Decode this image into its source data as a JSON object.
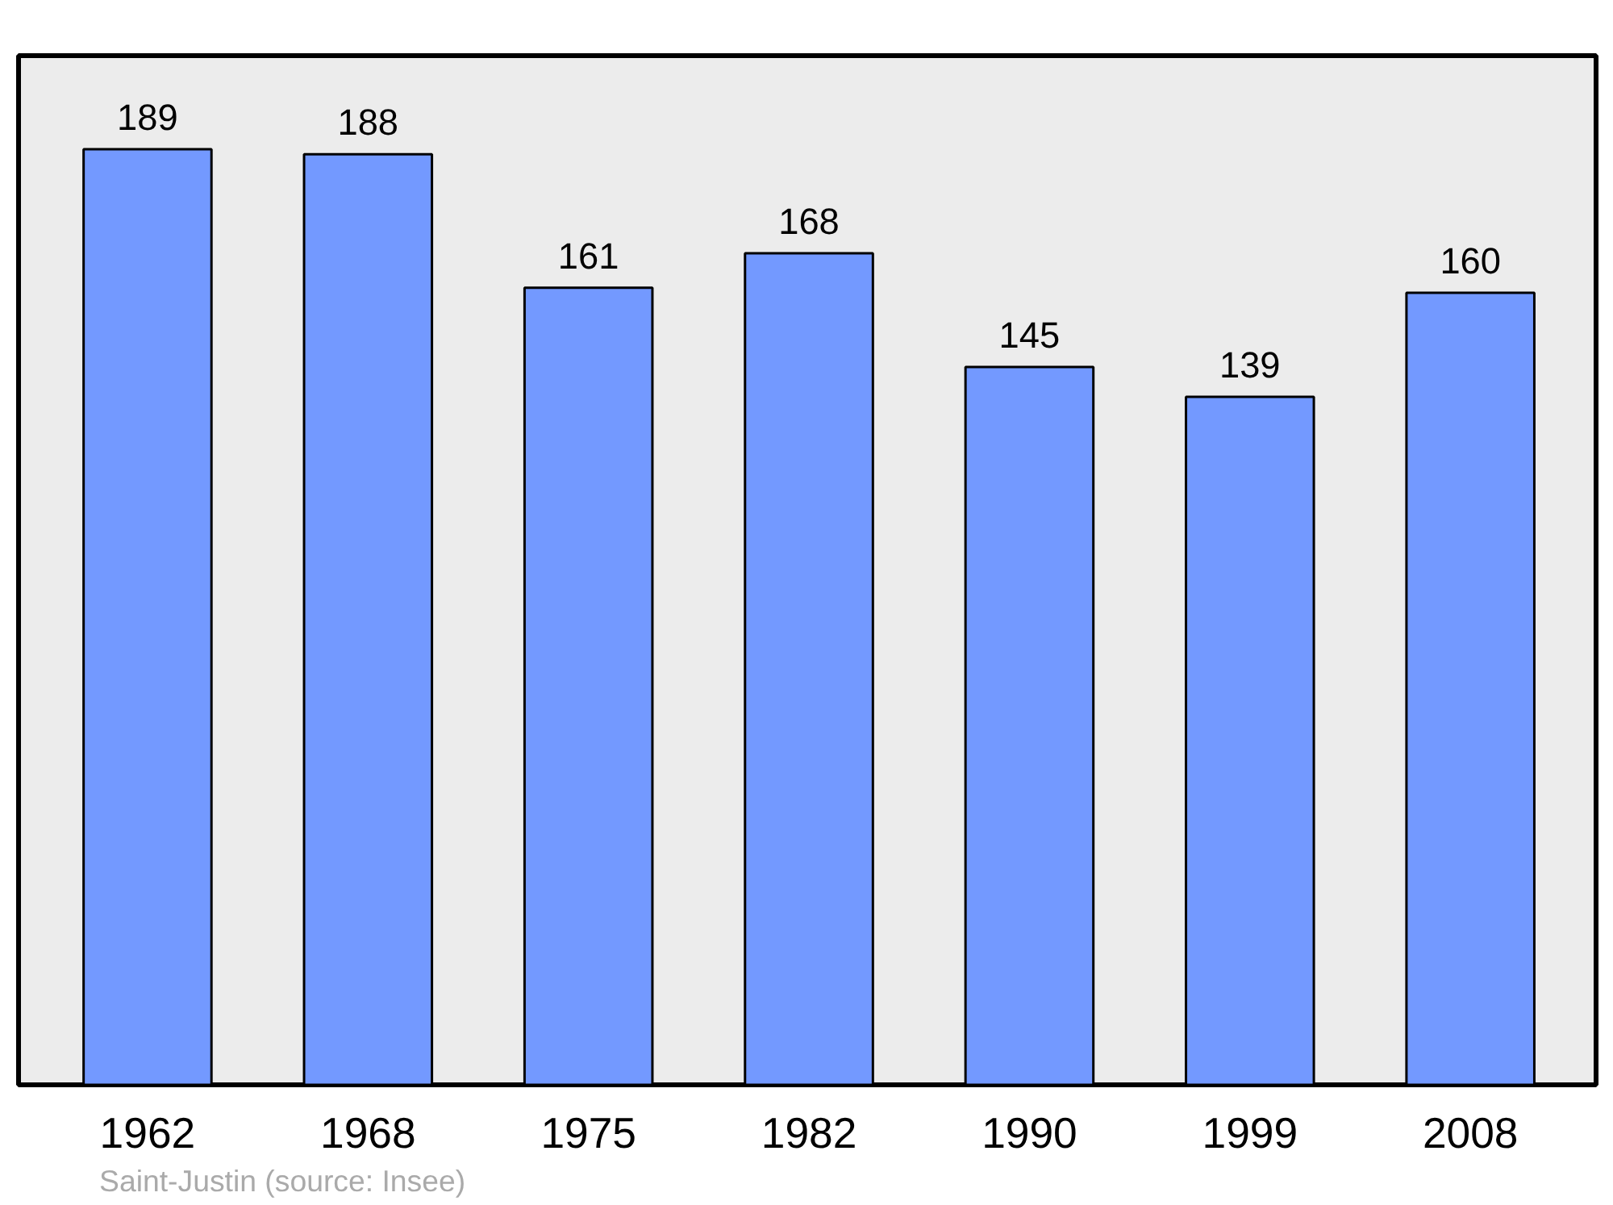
{
  "chart_data": {
    "type": "bar",
    "categories": [
      "1962",
      "1968",
      "1975",
      "1982",
      "1990",
      "1999",
      "2008"
    ],
    "values": [
      189,
      188,
      161,
      168,
      145,
      139,
      160
    ],
    "color": "#7399ff",
    "data_labels": true,
    "grid": false,
    "annotations": [
      "Saint-Justin    (source: Insee)"
    ]
  }
}
